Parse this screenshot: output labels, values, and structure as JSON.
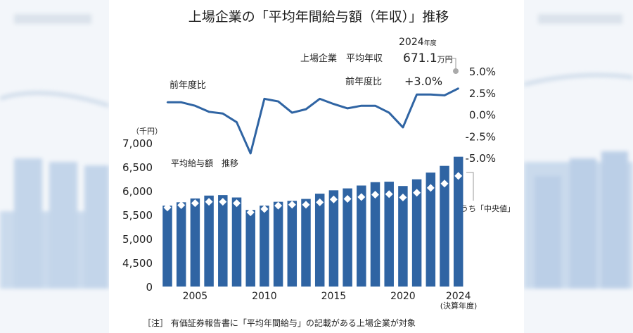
{
  "chart_data": {
    "type": "bar",
    "title": "上場企業の「平均年間給与額（年収）」推移",
    "x": [
      2003,
      2004,
      2005,
      2006,
      2007,
      2008,
      2009,
      2010,
      2011,
      2012,
      2013,
      2014,
      2015,
      2016,
      2017,
      2018,
      2019,
      2020,
      2021,
      2022,
      2023,
      2024
    ],
    "xticks": [
      "2005",
      "2010",
      "2015",
      "2020",
      "2024"
    ],
    "x_last_note": "(決算年度)",
    "series": [
      {
        "name": "平均給与額 推移",
        "type": "bar",
        "axis": "left",
        "color": "#2f64a3",
        "values": [
          5690,
          5760,
          5840,
          5900,
          5910,
          5860,
          5600,
          5690,
          5770,
          5790,
          5830,
          5940,
          6010,
          6050,
          6110,
          6180,
          6190,
          6100,
          6240,
          6380,
          6520,
          6711
        ]
      },
      {
        "name": "うち「中央値」",
        "type": "marker",
        "axis": "left",
        "color": "#ffffff",
        "values": [
          5650,
          5700,
          5740,
          5770,
          5770,
          5740,
          5550,
          5620,
          5690,
          5710,
          5710,
          5760,
          5820,
          5830,
          5870,
          5920,
          5930,
          5860,
          5960,
          6060,
          6150,
          6310
        ]
      },
      {
        "name": "前年度比",
        "type": "line",
        "axis": "right",
        "color": "#2f64a3",
        "values": [
          1.4,
          1.4,
          1.0,
          0.3,
          0.1,
          -0.9,
          -4.5,
          1.8,
          1.5,
          0.2,
          0.6,
          1.8,
          1.2,
          0.7,
          1.0,
          1.0,
          0.2,
          -1.5,
          2.3,
          2.3,
          2.2,
          3.0
        ]
      }
    ],
    "left_axis": {
      "unit": "（千円）",
      "ylim": [
        4000,
        7000
      ],
      "ticks": [
        "7,000",
        "6,500",
        "6,000",
        "5,500",
        "5,000",
        "4,500",
        "0"
      ],
      "tick_values": [
        7000,
        6500,
        6000,
        5500,
        5000,
        4500,
        4000
      ]
    },
    "right_axis": {
      "ylim": [
        -5.0,
        5.0
      ],
      "ticks": [
        "5.0%",
        "2.5%",
        "0.0%",
        "-2.5%",
        "-5.0%"
      ],
      "tick_values": [
        5.0,
        2.5,
        0.0,
        -2.5,
        -5.0
      ]
    },
    "grid": false,
    "labels": {
      "line": "前年度比",
      "bar": "平均給与額　推移",
      "median": "うち「中央値」",
      "year": "2024",
      "year_suffix": "年度",
      "annual_label": "上場企業　平均年収",
      "annual_value": "671.1",
      "annual_unit": "万円",
      "yoy_label": "前年度比",
      "yoy_value": "+3.0%"
    },
    "note": "［注］ 有価証券報告書に「平均年間給与」の記載がある上場企業が対象"
  }
}
